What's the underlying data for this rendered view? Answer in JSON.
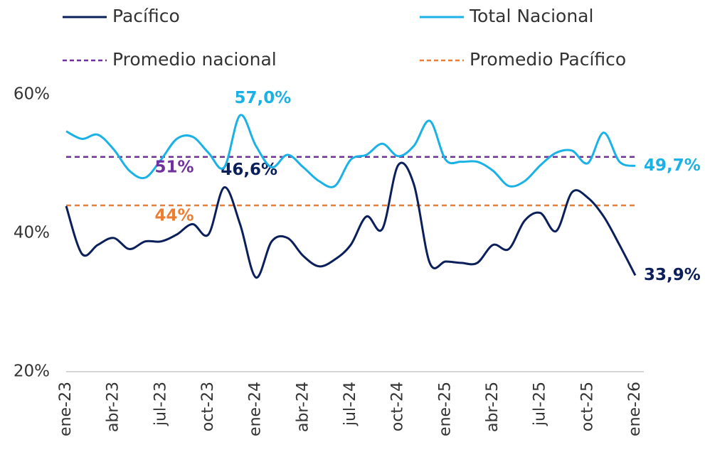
{
  "chart_data": {
    "type": "line",
    "categories": [
      "ene-23",
      null,
      null,
      "abr-23",
      null,
      null,
      "jul-23",
      null,
      null,
      "oct-23",
      null,
      null,
      "ene-24",
      null,
      null,
      "abr-24",
      null,
      null,
      "jul-24",
      null,
      null,
      "oct-24",
      null,
      null,
      "ene-25",
      null,
      null,
      "abr-25",
      null,
      null,
      "jul-25",
      null,
      null,
      "oct-25",
      null,
      null,
      "ene-26"
    ],
    "series": [
      {
        "name": "Pacífico",
        "color": "#0b1f5b",
        "values": [
          43.9,
          37.0,
          38.3,
          39.3,
          37.7,
          38.8,
          38.8,
          39.8,
          41.3,
          39.8,
          46.6,
          41.3,
          33.6,
          38.8,
          39.3,
          36.7,
          35.2,
          36.2,
          38.3,
          42.4,
          40.6,
          49.8,
          47.0,
          35.7,
          35.9,
          35.7,
          35.7,
          38.3,
          37.7,
          41.8,
          42.9,
          40.3,
          45.9,
          45.1,
          42.4,
          38.3,
          33.9
        ],
        "value_labels": [
          null,
          null,
          null,
          null,
          null,
          null,
          null,
          null,
          null,
          null,
          "46,6%",
          null,
          null,
          null,
          null,
          null,
          null,
          null,
          null,
          null,
          null,
          null,
          null,
          null,
          null,
          null,
          null,
          null,
          null,
          null,
          null,
          null,
          null,
          null,
          null,
          null,
          "33,9%"
        ]
      },
      {
        "name": "Total Nacional",
        "color": "#1ab2e6",
        "values": [
          54.7,
          53.6,
          54.2,
          52.1,
          49.0,
          48.0,
          50.6,
          53.6,
          53.9,
          51.6,
          49.5,
          57.0,
          52.6,
          49.5,
          51.3,
          49.5,
          47.5,
          46.8,
          50.6,
          51.3,
          52.9,
          51.1,
          52.6,
          56.2,
          50.6,
          50.3,
          50.3,
          49.0,
          46.8,
          47.5,
          49.8,
          51.6,
          51.9,
          50.1,
          54.5,
          50.3,
          49.7
        ],
        "value_labels": [
          null,
          null,
          null,
          null,
          null,
          null,
          null,
          null,
          null,
          null,
          null,
          "57,0%",
          null,
          null,
          null,
          null,
          null,
          null,
          null,
          null,
          null,
          null,
          null,
          null,
          null,
          null,
          null,
          null,
          null,
          null,
          null,
          null,
          null,
          null,
          null,
          null,
          "49,7%"
        ]
      }
    ],
    "reference_lines": [
      {
        "name": "Promedio nacional",
        "value": 51,
        "label": "51%",
        "color": "#7030a0"
      },
      {
        "name": "Promedio Pacífico",
        "value": 44,
        "label": "44%",
        "color": "#ed7d31"
      }
    ],
    "ylim": [
      20,
      60
    ],
    "yticks": [
      {
        "value": 20,
        "label": "20%"
      },
      {
        "value": 40,
        "label": "40%"
      },
      {
        "value": 60,
        "label": "60%"
      }
    ]
  }
}
